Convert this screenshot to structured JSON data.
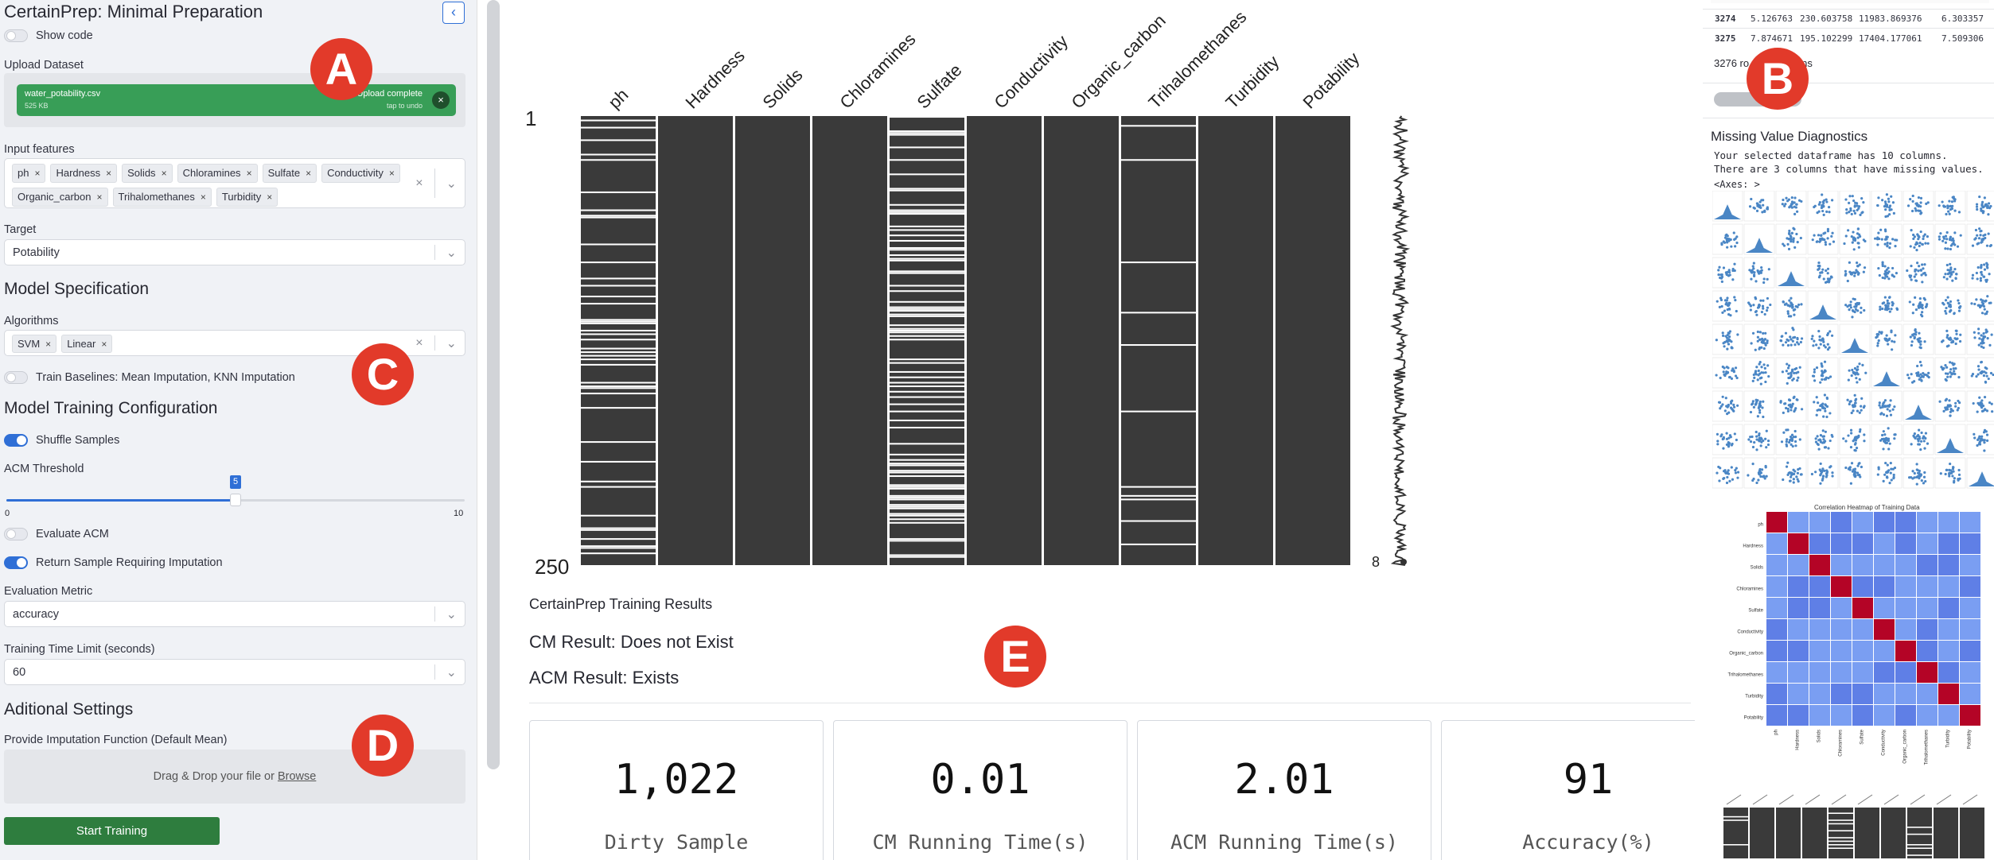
{
  "sidebar": {
    "title": "CertainPrep: Minimal Preparation",
    "show_code": "Show code",
    "upload_label": "Upload Dataset",
    "file_name": "water_potability.csv",
    "file_size": "525 KB",
    "upload_status": "Upload complete",
    "upload_sub": "tap to undo",
    "input_features_label": "Input features",
    "features": [
      "ph",
      "Hardness",
      "Solids",
      "Chloramines",
      "Sulfate",
      "Conductivity",
      "Organic_carbon",
      "Trihalomethanes",
      "Turbidity"
    ],
    "target_label": "Target",
    "target_value": "Potability",
    "model_spec": "Model Specification",
    "algorithms_label": "Algorithms",
    "algorithms": [
      "SVM",
      "Linear"
    ],
    "train_baselines": "Train Baselines: Mean Imputation, KNN Imputation",
    "training_config": "Model Training Configuration",
    "shuffle": "Shuffle Samples",
    "acm_threshold_label": "ACM Threshold",
    "acm_value": "5",
    "acm_min": "0",
    "acm_max": "10",
    "acm_fraction": 0.5,
    "evaluate_acm": "Evaluate ACM",
    "return_sample": "Return Sample Requiring Imputation",
    "eval_metric_label": "Evaluation Metric",
    "eval_metric_value": "accuracy",
    "time_limit_label": "Training Time Limit (seconds)",
    "time_limit_value": "60",
    "additional": "Aditional Settings",
    "imputation_label": "Provide Imputation Function (Default Mean)",
    "drop_text": "Drag & Drop your file or",
    "browse": "Browse",
    "start_button": "Start Training"
  },
  "matrix": {
    "columns": [
      "ph",
      "Hardness",
      "Solids",
      "Chloramines",
      "Sulfate",
      "Conductivity",
      "Organic_carbon",
      "Trihalomethanes",
      "Turbidity",
      "Potability"
    ],
    "row_start": "1",
    "row_end": "250",
    "spark_min": "8",
    "spark_max": "10"
  },
  "results": {
    "title": "CertainPrep Training Results",
    "cm": "CM Result: Does not Exist",
    "acm": "ACM Result: Exists",
    "stats": [
      {
        "value": "1,022",
        "caption": "Dirty Sample"
      },
      {
        "value": "0.01",
        "caption": "CM Running Time(s)"
      },
      {
        "value": "2.01",
        "caption": "ACM Running Time(s)"
      },
      {
        "value": "91",
        "caption": "Accuracy(%)"
      }
    ]
  },
  "right": {
    "rows": [
      {
        "idx": "3274",
        "a": "5.126763",
        "b": "230.603758",
        "c": "11983.869376",
        "d": "6.303357"
      },
      {
        "idx": "3275",
        "a": "7.874671",
        "b": "195.102299",
        "c": "17404.177061",
        "d": "7.509306"
      }
    ],
    "rows_summary_a": "3276 ro",
    "rows_summary_b": "umns",
    "missing_title": "Missing Value Diagnostics",
    "line1": "Your selected dataframe has 10 columns.",
    "line2": "There are 3 columns that have missing values.",
    "axes": "<Axes: >",
    "heatmap_title": "Correlation Heatmap of Training Data"
  },
  "badges": [
    "A",
    "B",
    "C",
    "D",
    "E"
  ]
}
